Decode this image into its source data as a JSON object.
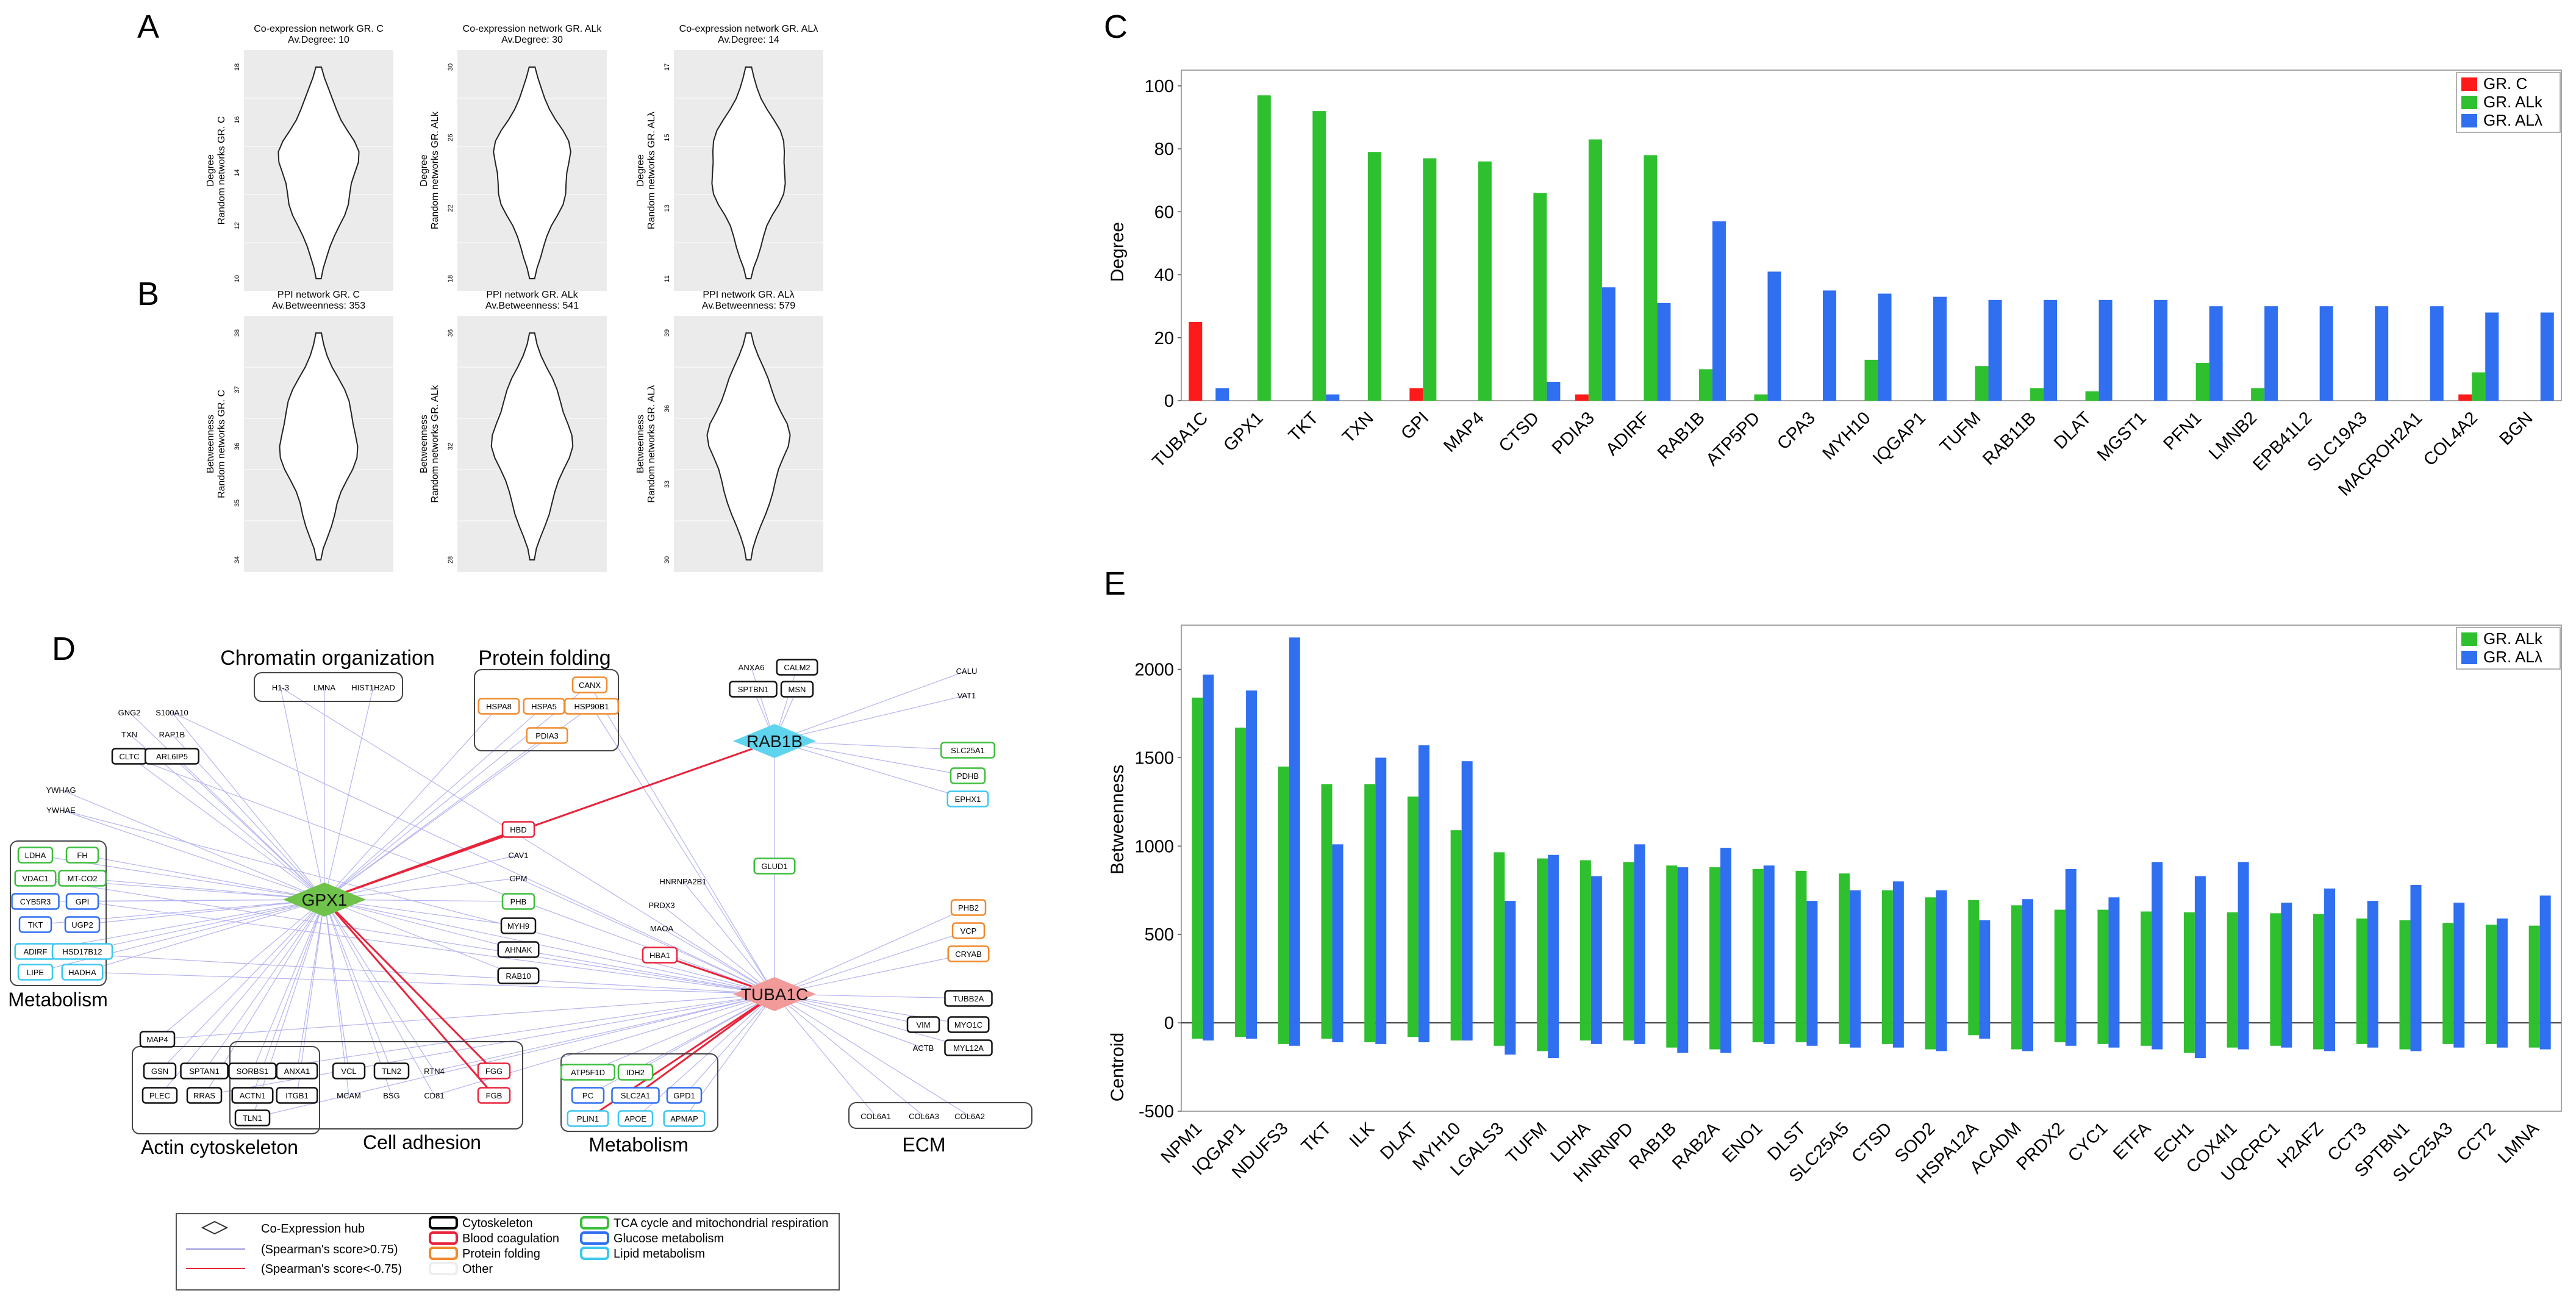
{
  "panel_labels": {
    "a": "A",
    "b": "B",
    "c": "C",
    "d": "D",
    "e": "E"
  },
  "violins": [
    {
      "title": "Co-expression network GR. C",
      "subtitle": "Av.Degree: 10",
      "ylabel": "Degree",
      "ylabel2": "Random networks GR. C",
      "ticks": [
        "10",
        "12",
        "14",
        "16",
        "18"
      ]
    },
    {
      "title": "Co-expression network GR. ALk",
      "subtitle": "Av.Degree: 30",
      "ylabel": "Degree",
      "ylabel2": "Random networks GR. ALk",
      "ticks": [
        "18",
        "22",
        "26",
        "30"
      ]
    },
    {
      "title": "Co-expression network GR. ALλ",
      "subtitle": "Av.Degree: 14",
      "ylabel": "Degree",
      "ylabel2": "Random networks GR. ALλ",
      "ticks": [
        "11",
        "13",
        "15",
        "17"
      ]
    },
    {
      "title": "PPI network GR. C",
      "subtitle": "Av.Betweenness: 353",
      "ylabel": "Betweenness",
      "ylabel2": "Random networks GR. C",
      "ticks": [
        "34",
        "35",
        "36",
        "37",
        "38"
      ]
    },
    {
      "title": "PPI network GR. ALk",
      "subtitle": "Av.Betweenness: 541",
      "ylabel": "Betweenness",
      "ylabel2": "Random networks GR. ALk",
      "ticks": [
        "28",
        "32",
        "36"
      ]
    },
    {
      "title": "PPI network GR. ALλ",
      "subtitle": "Av.Betweenness: 579",
      "ylabel": "Betweenness",
      "ylabel2": "Random networks GR. ALλ",
      "ticks": [
        "30",
        "33",
        "36",
        "39"
      ]
    }
  ],
  "network": {
    "hubs": [
      {
        "id": "gpx1",
        "label": "GPX1",
        "color": "#6fc24a"
      },
      {
        "id": "rab1b",
        "label": "RAB1B",
        "color": "#5fd4ef"
      },
      {
        "id": "tuba1c",
        "label": "TUBA1C",
        "color": "#f29a9a"
      }
    ],
    "groups": {
      "chromatin": "Chromatin organization",
      "folding": "Protein folding",
      "actin": "Actin cytoskeleton",
      "adhesion": "Cell adhesion",
      "metab_left": "Metabolism",
      "metab_bottom": "Metabolism",
      "ecm": "ECM"
    },
    "boxed_nodes": [
      {
        "k": "h13",
        "t": "H1-3"
      },
      {
        "k": "lmna",
        "t": "LMNA"
      },
      {
        "k": "hist",
        "t": "HIST1H2AD"
      },
      {
        "k": "canx",
        "t": "CANX"
      },
      {
        "k": "hspa8",
        "t": "HSPA8"
      },
      {
        "k": "hspa5",
        "t": "HSPA5"
      },
      {
        "k": "hsp90",
        "t": "HSP90B1"
      },
      {
        "k": "pdia3",
        "t": "PDIA3"
      },
      {
        "k": "anxa6",
        "t": "ANXA6"
      },
      {
        "k": "calm2",
        "t": "CALM2"
      },
      {
        "k": "sptbn1",
        "t": "SPTBN1"
      },
      {
        "k": "msn",
        "t": "MSN"
      },
      {
        "k": "calu",
        "t": "CALU"
      },
      {
        "k": "vat1",
        "t": "VAT1"
      },
      {
        "k": "slc25",
        "t": "SLC25A1"
      },
      {
        "k": "pdhb",
        "t": "PDHB"
      },
      {
        "k": "ephx1",
        "t": "EPHX1"
      },
      {
        "k": "gng2",
        "t": "GNG2"
      },
      {
        "k": "s100",
        "t": "S100A10"
      },
      {
        "k": "txn",
        "t": "TXN"
      },
      {
        "k": "rap1b",
        "t": "RAP1B"
      },
      {
        "k": "cltc",
        "t": "CLTC"
      },
      {
        "k": "arl6",
        "t": "ARL6IP5"
      },
      {
        "k": "ywhag",
        "t": "YWHAG"
      },
      {
        "k": "ywhae",
        "t": "YWHAE"
      },
      {
        "k": "ldha",
        "t": "LDHA"
      },
      {
        "k": "fh",
        "t": "FH"
      },
      {
        "k": "vdac1",
        "t": "VDAC1"
      },
      {
        "k": "mtco2",
        "t": "MT-CO2"
      },
      {
        "k": "cyb5",
        "t": "CYB5R3"
      },
      {
        "k": "gpi",
        "t": "GPI"
      },
      {
        "k": "tkt",
        "t": "TKT"
      },
      {
        "k": "ugp2",
        "t": "UGP2"
      },
      {
        "k": "adirf",
        "t": "ADIRF"
      },
      {
        "k": "hsd",
        "t": "HSD17B12"
      },
      {
        "k": "lipe",
        "t": "LIPE"
      },
      {
        "k": "hadha",
        "t": "HADHA"
      },
      {
        "k": "hbd",
        "t": "HBD"
      },
      {
        "k": "cav1",
        "t": "CAV1"
      },
      {
        "k": "cpm",
        "t": "CPM"
      },
      {
        "k": "phb",
        "t": "PHB"
      },
      {
        "k": "myh9",
        "t": "MYH9"
      },
      {
        "k": "ahnak",
        "t": "AHNAK"
      },
      {
        "k": "rab10",
        "t": "RAB10"
      },
      {
        "k": "glud1",
        "t": "GLUD1"
      },
      {
        "k": "hnrn",
        "t": "HNRNPA2B1"
      },
      {
        "k": "prdx3",
        "t": "PRDX3"
      },
      {
        "k": "maoa",
        "t": "MAOA"
      },
      {
        "k": "hba1",
        "t": "HBA1"
      },
      {
        "k": "phb2",
        "t": "PHB2"
      },
      {
        "k": "vcp",
        "t": "VCP"
      },
      {
        "k": "cryab",
        "t": "CRYAB"
      },
      {
        "k": "tubb2a",
        "t": "TUBB2A"
      },
      {
        "k": "vim",
        "t": "VIM"
      },
      {
        "k": "myo1c",
        "t": "MYO1C"
      },
      {
        "k": "actb",
        "t": "ACTB"
      },
      {
        "k": "myl12a",
        "t": "MYL12A"
      },
      {
        "k": "map4",
        "t": "MAP4"
      },
      {
        "k": "gsn",
        "t": "GSN"
      },
      {
        "k": "sptan1",
        "t": "SPTAN1"
      },
      {
        "k": "sorbs1",
        "t": "SORBS1"
      },
      {
        "k": "anxa1",
        "t": "ANXA1"
      },
      {
        "k": "plec",
        "t": "PLEC"
      },
      {
        "k": "rras",
        "t": "RRAS"
      },
      {
        "k": "actn1",
        "t": "ACTN1"
      },
      {
        "k": "itgb1",
        "t": "ITGB1"
      },
      {
        "k": "tln1",
        "t": "TLN1"
      },
      {
        "k": "vcl",
        "t": "VCL"
      },
      {
        "k": "tln2",
        "t": "TLN2"
      },
      {
        "k": "rtn4",
        "t": "RTN4"
      },
      {
        "k": "mcam",
        "t": "MCAM"
      },
      {
        "k": "bsg",
        "t": "BSG"
      },
      {
        "k": "cd81",
        "t": "CD81"
      },
      {
        "k": "fgg",
        "t": "FGG"
      },
      {
        "k": "fgb",
        "t": "FGB"
      },
      {
        "k": "atp5",
        "t": "ATP5F1D"
      },
      {
        "k": "idh2",
        "t": "IDH2"
      },
      {
        "k": "pc",
        "t": "PC"
      },
      {
        "k": "slc2a1",
        "t": "SLC2A1"
      },
      {
        "k": "gpd1",
        "t": "GPD1"
      },
      {
        "k": "plin1",
        "t": "PLIN1"
      },
      {
        "k": "apoe",
        "t": "APOE"
      },
      {
        "k": "apmap",
        "t": "APMAP"
      },
      {
        "k": "col6a1",
        "t": "COL6A1"
      },
      {
        "k": "col6a3",
        "t": "COL6A3"
      },
      {
        "k": "col6a2",
        "t": "COL6A2"
      }
    ],
    "legend": {
      "hub": "Co-Expression hub",
      "pos": "(Spearman's score>0.75)",
      "neg": "(Spearman's score<-0.75)",
      "cyto": "Cytoskeleton",
      "blood": "Blood coagulation",
      "fold": "Protein folding",
      "other": "Other",
      "tca": "TCA cycle and mitochondrial respiration",
      "glucose": "Glucose metabolism",
      "lipid": "Lipid metabolism"
    }
  },
  "chart_data": [
    {
      "type": "bar",
      "title": "",
      "xlabel": "",
      "ylabel": "Degree",
      "ylim": [
        0,
        105
      ],
      "yticks": [
        "0",
        "20",
        "40",
        "60",
        "80",
        "100"
      ],
      "categories": [
        "TUBA1C",
        "GPX1",
        "TKT",
        "TXN",
        "GPI",
        "MAP4",
        "CTSD",
        "PDIA3",
        "ADIRF",
        "RAB1B",
        "ATP5PD",
        "CPA3",
        "MYH10",
        "IQGAP1",
        "TUFM",
        "RAB11B",
        "DLAT",
        "MGST1",
        "PFN1",
        "LMNB2",
        "EPB41L2",
        "SLC19A3",
        "MACROH2A1",
        "COL4A2",
        "BGN"
      ],
      "series": [
        {
          "name": "GR. C",
          "color": "#ff1a1a",
          "values": [
            25,
            0,
            0,
            0,
            4,
            0,
            0,
            2,
            0,
            0,
            0,
            0,
            0,
            0,
            0,
            0,
            0,
            0,
            0,
            0,
            0,
            0,
            0,
            2,
            0
          ]
        },
        {
          "name": "GR. ALk",
          "color": "#2ec02e",
          "values": [
            0,
            97,
            92,
            79,
            77,
            76,
            66,
            83,
            78,
            10,
            2,
            0,
            13,
            0,
            11,
            4,
            3,
            0,
            12,
            4,
            0,
            0,
            0,
            9,
            0
          ]
        },
        {
          "name": "GR. ALλ",
          "color": "#2f6ff0",
          "values": [
            4,
            0,
            2,
            0,
            0,
            0,
            6,
            36,
            31,
            57,
            41,
            35,
            34,
            33,
            32,
            32,
            32,
            32,
            30,
            30,
            30,
            30,
            30,
            28,
            28
          ]
        }
      ],
      "legend": "top-right"
    },
    {
      "type": "bar",
      "title": "",
      "xlabel": "",
      "ylabel": "Betweenness",
      "ylabel_neg": "Centroid",
      "ylim": [
        -500,
        2250
      ],
      "yticks": [
        "-500",
        "0",
        "500",
        "1000",
        "1500",
        "2000"
      ],
      "categories": [
        "NPM1",
        "IQGAP1",
        "NDUFS3",
        "TKT",
        "ILK",
        "DLAT",
        "MYH10",
        "LGALS3",
        "TUFM",
        "LDHA",
        "HNRNPD",
        "RAB1B",
        "RAB2A",
        "ENO1",
        "DLST",
        "SLC25A5",
        "CTSD",
        "SOD2",
        "HSPA12A",
        "ACADM",
        "PRDX2",
        "CYC1",
        "ETFA",
        "ECH1",
        "COX4I1",
        "UQCRC1",
        "H2AFZ",
        "CCT3",
        "SPTBN1",
        "SLC25A3",
        "CCT2",
        "LMNA"
      ],
      "series": [
        {
          "name": "GR. ALk",
          "color": "#2ec02e",
          "betweenness": [
            1840,
            1670,
            1450,
            1350,
            1350,
            1280,
            1090,
            965,
            930,
            920,
            910,
            890,
            880,
            870,
            860,
            845,
            750,
            710,
            695,
            665,
            640,
            640,
            630,
            625,
            625,
            620,
            615,
            590,
            580,
            565,
            555,
            550
          ],
          "centroid": [
            -90,
            -80,
            -120,
            -90,
            -110,
            -80,
            -100,
            -130,
            -160,
            -100,
            -100,
            -140,
            -150,
            -110,
            -110,
            -120,
            -120,
            -150,
            -70,
            -150,
            -110,
            -120,
            -130,
            -170,
            -140,
            -130,
            -150,
            -120,
            -150,
            -120,
            -120,
            -140
          ]
        },
        {
          "name": "GR. ALλ",
          "color": "#2f6ff0",
          "betweenness": [
            1970,
            1880,
            2180,
            1010,
            1500,
            1570,
            1480,
            690,
            950,
            830,
            1010,
            880,
            990,
            890,
            690,
            750,
            800,
            750,
            580,
            700,
            870,
            710,
            910,
            830,
            910,
            680,
            760,
            690,
            780,
            680,
            590,
            720
          ],
          "centroid": [
            -100,
            -90,
            -130,
            -110,
            -120,
            -110,
            -100,
            -180,
            -200,
            -120,
            -120,
            -170,
            -170,
            -120,
            -130,
            -140,
            -140,
            -160,
            -90,
            -160,
            -130,
            -140,
            -150,
            -200,
            -150,
            -140,
            -160,
            -140,
            -160,
            -140,
            -140,
            -150
          ]
        }
      ],
      "legend": "top-right"
    }
  ]
}
